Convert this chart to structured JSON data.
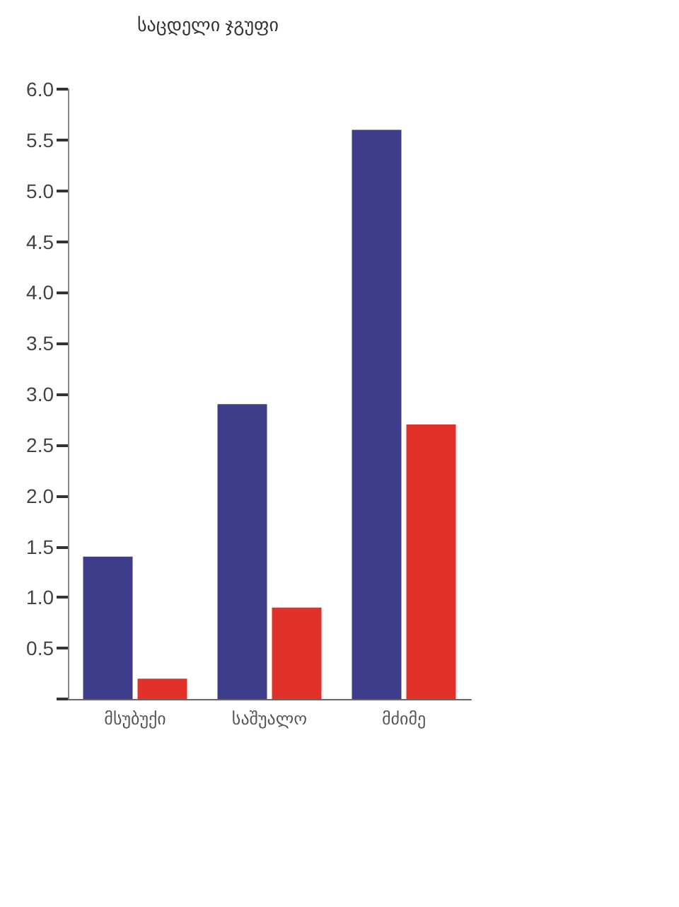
{
  "chart_data": {
    "type": "bar",
    "title": "საცდელი ჯგუფი",
    "categories": [
      "მსუბუქი",
      "საშუალო",
      "მძიმე"
    ],
    "series": [
      {
        "color": "#3e3d8c",
        "values": [
          1.4,
          2.9,
          5.6
        ]
      },
      {
        "color": "#e2302a",
        "values": [
          0.2,
          0.9,
          2.7
        ]
      }
    ],
    "ylim": [
      0,
      6
    ],
    "yticks": [
      {
        "value": 0,
        "label": null
      },
      0.5,
      {
        "value": 1,
        "label": "1.0"
      },
      1.5,
      {
        "value": 2,
        "label": "2.0"
      },
      2.5,
      {
        "value": 3,
        "label": "3.0"
      },
      3.5,
      {
        "value": 4,
        "label": "4.0"
      },
      4.5,
      {
        "value": 5,
        "label": "5.0"
      },
      5.5,
      {
        "value": 6,
        "label": "6.0"
      }
    ],
    "grid": false
  }
}
